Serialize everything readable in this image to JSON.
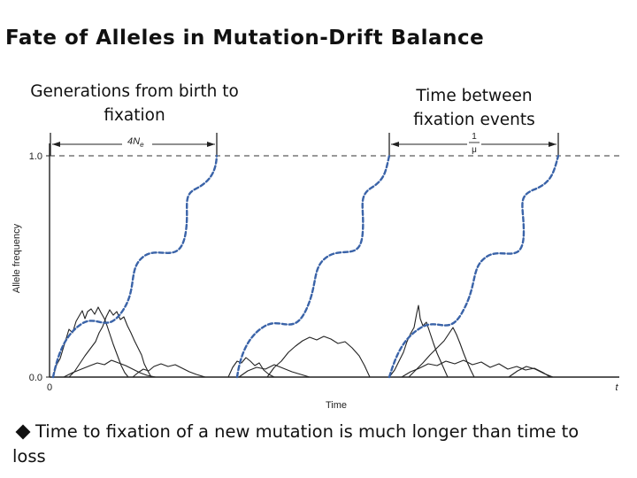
{
  "title": "Fate of Alleles in Mutation-Drift Balance",
  "caption_left": "Generations from birth to fixation",
  "caption_right": "Time between fixation events",
  "figure": {
    "y_axis_label": "Allele frequency",
    "x_axis_label": "Time",
    "y_tick_top": "1.0",
    "y_tick_bottom": "0.0",
    "x_tick_start": "0",
    "x_tick_end": "t",
    "span_left_label": "4N",
    "span_left_subscript": "e",
    "span_right_numerator": "1",
    "span_right_denominator": "μ",
    "fixed_line_color": "#3a63a8",
    "lost_line_color": "#222222"
  },
  "bullet": {
    "text": "Time to fixation of a new mutation is much longer than time to loss"
  }
}
